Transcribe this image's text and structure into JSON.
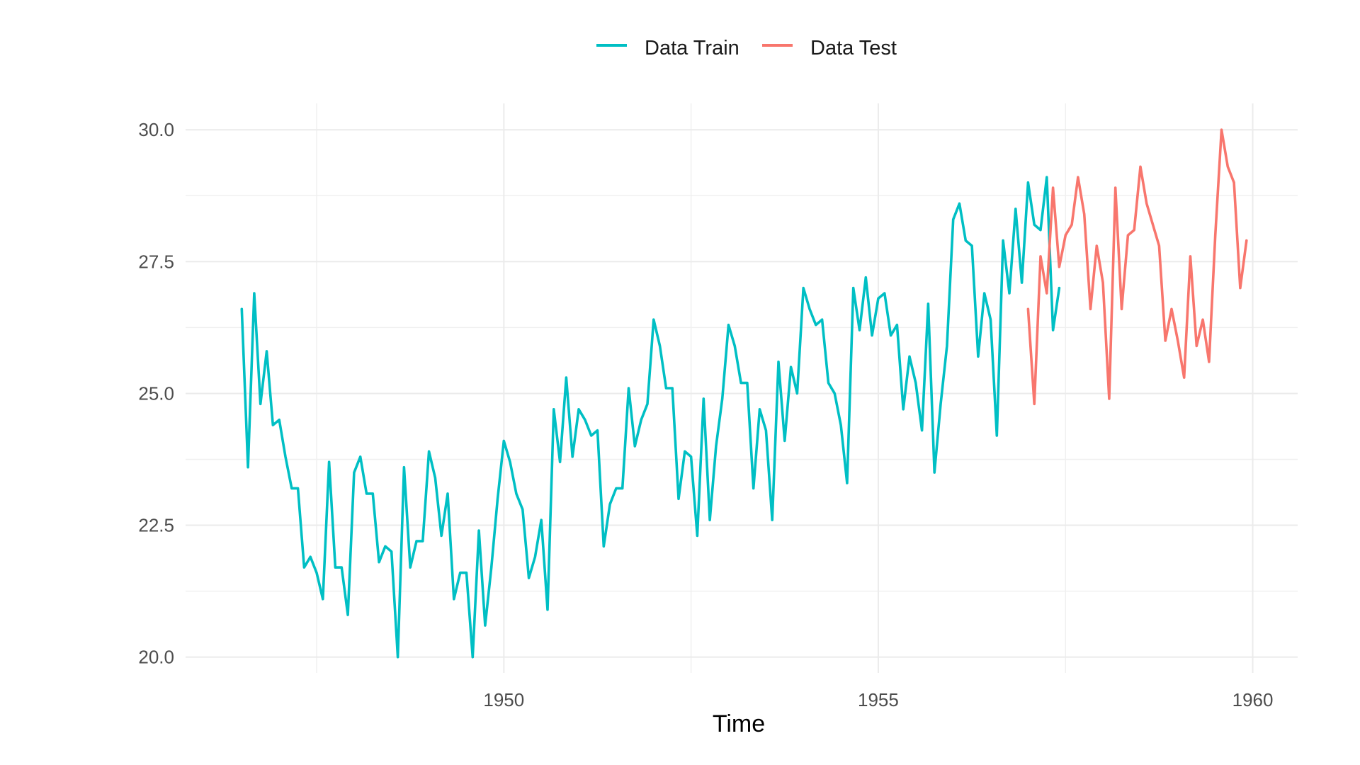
{
  "chart_data": {
    "type": "line",
    "xlabel": "Time",
    "ylabel": "",
    "xlim": [
      1945.75,
      1960.6
    ],
    "ylim": [
      19.7,
      30.5
    ],
    "x_ticks": [
      {
        "value": 1950,
        "label": "1950"
      },
      {
        "value": 1955,
        "label": "1955"
      },
      {
        "value": 1960,
        "label": "1960"
      }
    ],
    "x_minor_ticks": [
      1947.5,
      1952.5,
      1957.5
    ],
    "y_ticks": [
      {
        "value": 20.0,
        "label": "20.0"
      },
      {
        "value": 22.5,
        "label": "22.5"
      },
      {
        "value": 25.0,
        "label": "25.0"
      },
      {
        "value": 27.5,
        "label": "27.5"
      },
      {
        "value": 30.0,
        "label": "30.0"
      }
    ],
    "y_minor_ticks": [
      21.25,
      23.75,
      26.25,
      28.75
    ],
    "grid": true,
    "legend_position": "top",
    "series": [
      {
        "name": "Data Train",
        "color": "#00BFC4",
        "x_start": 1946.5,
        "x_step": 0.083333,
        "values": [
          26.6,
          23.6,
          26.9,
          24.8,
          25.8,
          24.4,
          24.5,
          23.8,
          23.2,
          23.2,
          21.7,
          21.9,
          21.6,
          21.1,
          23.7,
          21.7,
          21.7,
          20.8,
          23.5,
          23.8,
          23.1,
          23.1,
          21.8,
          22.1,
          22.0,
          20.0,
          23.6,
          21.7,
          22.2,
          22.2,
          23.9,
          23.4,
          22.3,
          23.1,
          21.1,
          21.6,
          21.6,
          20.0,
          22.4,
          20.6,
          21.7,
          23.0,
          24.1,
          23.7,
          23.1,
          22.8,
          21.5,
          21.9,
          22.6,
          20.9,
          24.7,
          23.7,
          25.3,
          23.8,
          24.7,
          24.5,
          24.2,
          24.3,
          22.1,
          22.9,
          23.2,
          23.2,
          25.1,
          24.0,
          24.5,
          24.8,
          26.4,
          25.9,
          25.1,
          25.1,
          23.0,
          23.9,
          23.8,
          22.3,
          24.9,
          22.6,
          24.0,
          24.9,
          26.3,
          25.9,
          25.2,
          25.2,
          23.2,
          24.7,
          24.3,
          22.6,
          25.6,
          24.1,
          25.5,
          25.0,
          27.0,
          26.6,
          26.3,
          26.4,
          25.2,
          25.0,
          24.4,
          23.3,
          27.0,
          26.2,
          27.2,
          26.1,
          26.8,
          26.9,
          26.1,
          26.3,
          24.7,
          25.7,
          25.2,
          24.3,
          26.7,
          23.5,
          24.8,
          25.9,
          28.3,
          28.6,
          27.9,
          27.8,
          25.7,
          26.9,
          26.4,
          24.2,
          27.9,
          26.9,
          28.5,
          27.1,
          29.0,
          28.2,
          28.1,
          29.1,
          26.2,
          27.0
        ]
      },
      {
        "name": "Data Test",
        "color": "#F8766D",
        "x_start": 1957.0,
        "x_step": 0.083333,
        "values": [
          26.6,
          24.8,
          27.6,
          26.9,
          28.9,
          27.4,
          28.0,
          28.2,
          29.1,
          28.4,
          26.6,
          27.8,
          27.1,
          24.9,
          28.9,
          26.6,
          28.0,
          28.1,
          29.3,
          28.6,
          28.2,
          27.8,
          26.0,
          26.6,
          26.0,
          25.3,
          27.6,
          25.9,
          26.4,
          25.6,
          28.0,
          30.0,
          29.3,
          29.0,
          27.0,
          27.9
        ]
      }
    ]
  }
}
